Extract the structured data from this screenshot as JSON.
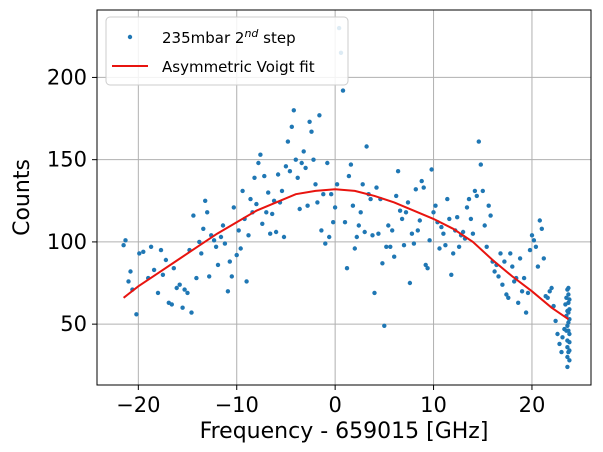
{
  "chart_data": {
    "type": "scatter",
    "title": "",
    "xlabel": "Frequency - 659015 [GHz]",
    "ylabel": "Counts",
    "xlim": [
      -24.2,
      26.0
    ],
    "ylim": [
      13,
      241
    ],
    "xticks": [
      -20,
      -10,
      0,
      10,
      20
    ],
    "xtick_labels": [
      "−20",
      "−10",
      "0",
      "10",
      "20"
    ],
    "yticks": [
      50,
      100,
      150,
      200
    ],
    "grid": true,
    "legend_position": "top-left",
    "colors": {
      "scatter": "#1f77b4",
      "fit": "#e8140f",
      "grid": "#b0b0b0"
    },
    "series": [
      {
        "name": "235mbar 2nd step",
        "name_prefix": "235mbar 2",
        "name_sup": "nd",
        "name_suffix": " step",
        "kind": "scatter",
        "points": [
          [
            -21.5,
            98
          ],
          [
            -21.3,
            101
          ],
          [
            -21.0,
            76
          ],
          [
            -20.8,
            82
          ],
          [
            -20.6,
            71
          ],
          [
            -20.2,
            56
          ],
          [
            -19.9,
            93
          ],
          [
            -19.5,
            94
          ],
          [
            -19.0,
            78
          ],
          [
            -18.7,
            97
          ],
          [
            -18.4,
            83
          ],
          [
            -18.0,
            69
          ],
          [
            -17.7,
            95
          ],
          [
            -17.5,
            80
          ],
          [
            -17.2,
            89
          ],
          [
            -16.9,
            63
          ],
          [
            -16.6,
            62
          ],
          [
            -16.4,
            84
          ],
          [
            -16.1,
            72
          ],
          [
            -15.8,
            74
          ],
          [
            -15.5,
            60
          ],
          [
            -15.3,
            71
          ],
          [
            -15.0,
            69
          ],
          [
            -14.8,
            95
          ],
          [
            -14.6,
            57
          ],
          [
            -14.4,
            116
          ],
          [
            -14.1,
            78
          ],
          [
            -13.8,
            100
          ],
          [
            -13.6,
            93
          ],
          [
            -13.4,
            108
          ],
          [
            -13.2,
            125
          ],
          [
            -13.0,
            118
          ],
          [
            -12.8,
            79
          ],
          [
            -12.6,
            104
          ],
          [
            -12.3,
            101
          ],
          [
            -12.1,
            97
          ],
          [
            -11.9,
            86
          ],
          [
            -11.6,
            103
          ],
          [
            -11.4,
            110
          ],
          [
            -11.2,
            99
          ],
          [
            -10.9,
            70
          ],
          [
            -10.7,
            88
          ],
          [
            -10.5,
            79
          ],
          [
            -10.3,
            121
          ],
          [
            -10.0,
            92
          ],
          [
            -9.8,
            107
          ],
          [
            -9.6,
            96
          ],
          [
            -9.4,
            131
          ],
          [
            -9.2,
            114
          ],
          [
            -9.0,
            76
          ],
          [
            -8.8,
            104
          ],
          [
            -8.6,
            126
          ],
          [
            -8.4,
            118
          ],
          [
            -8.2,
            139
          ],
          [
            -8.0,
            123
          ],
          [
            -7.8,
            148
          ],
          [
            -7.6,
            153
          ],
          [
            -7.4,
            111
          ],
          [
            -7.2,
            140
          ],
          [
            -7.0,
            118
          ],
          [
            -6.8,
            130
          ],
          [
            -6.6,
            105
          ],
          [
            -6.4,
            117
          ],
          [
            -6.2,
            125
          ],
          [
            -6.0,
            106
          ],
          [
            -5.8,
            141
          ],
          [
            -5.6,
            124
          ],
          [
            -5.4,
            131
          ],
          [
            -5.2,
            103
          ],
          [
            -5.0,
            146
          ],
          [
            -4.8,
            161
          ],
          [
            -4.6,
            143
          ],
          [
            -4.4,
            170
          ],
          [
            -4.2,
            180
          ],
          [
            -4.0,
            150
          ],
          [
            -3.8,
            139
          ],
          [
            -3.6,
            120
          ],
          [
            -3.4,
            148
          ],
          [
            -3.2,
            155
          ],
          [
            -3.0,
            145
          ],
          [
            -2.8,
            122
          ],
          [
            -2.6,
            173
          ],
          [
            -2.4,
            167
          ],
          [
            -2.2,
            150
          ],
          [
            -2.0,
            135
          ],
          [
            -1.8,
            124
          ],
          [
            -1.6,
            177
          ],
          [
            -1.4,
            107
          ],
          [
            -1.2,
            129
          ],
          [
            -1.0,
            99
          ],
          [
            -0.8,
            148
          ],
          [
            -0.6,
            103
          ],
          [
            -0.4,
            129
          ],
          [
            -0.2,
            112
          ],
          [
            0.0,
            121
          ],
          [
            0.2,
            135
          ],
          [
            0.4,
            230
          ],
          [
            0.6,
            215
          ],
          [
            0.8,
            192
          ],
          [
            1.0,
            112
          ],
          [
            1.2,
            84
          ],
          [
            1.4,
            140
          ],
          [
            1.6,
            147
          ],
          [
            1.8,
            122
          ],
          [
            2.0,
            96
          ],
          [
            2.2,
            103
          ],
          [
            2.4,
            110
          ],
          [
            2.6,
            118
          ],
          [
            2.8,
            135
          ],
          [
            3.0,
            106
          ],
          [
            3.2,
            158
          ],
          [
            3.4,
            129
          ],
          [
            3.6,
            126
          ],
          [
            3.8,
            104
          ],
          [
            4.0,
            69
          ],
          [
            4.2,
            133
          ],
          [
            4.4,
            105
          ],
          [
            4.6,
            126
          ],
          [
            4.8,
            87
          ],
          [
            5.0,
            49
          ],
          [
            5.2,
            97
          ],
          [
            5.4,
            110
          ],
          [
            5.6,
            97
          ],
          [
            5.8,
            107
          ],
          [
            6.0,
            91
          ],
          [
            6.2,
            128
          ],
          [
            6.4,
            143
          ],
          [
            6.6,
            119
          ],
          [
            6.8,
            114
          ],
          [
            7.0,
            98
          ],
          [
            7.2,
            118
          ],
          [
            7.4,
            124
          ],
          [
            7.6,
            75
          ],
          [
            7.8,
            105
          ],
          [
            8.0,
            99
          ],
          [
            8.2,
            132
          ],
          [
            8.4,
            107
          ],
          [
            8.6,
            113
          ],
          [
            8.8,
            137
          ],
          [
            9.0,
            133
          ],
          [
            9.2,
            86
          ],
          [
            9.4,
            84
          ],
          [
            9.6,
            101
          ],
          [
            9.8,
            144
          ],
          [
            10.0,
            118
          ],
          [
            10.2,
            122
          ],
          [
            10.4,
            112
          ],
          [
            10.6,
            96
          ],
          [
            10.8,
            109
          ],
          [
            11.0,
            105
          ],
          [
            11.2,
            98
          ],
          [
            11.4,
            126
          ],
          [
            11.6,
            114
          ],
          [
            11.8,
            80
          ],
          [
            12.0,
            93
          ],
          [
            12.2,
            107
          ],
          [
            12.4,
            115
          ],
          [
            12.6,
            97
          ],
          [
            12.8,
            104
          ],
          [
            13.0,
            106
          ],
          [
            13.2,
            102
          ],
          [
            13.4,
            121
          ],
          [
            13.6,
            126
          ],
          [
            13.8,
            114
          ],
          [
            14.0,
            105
          ],
          [
            14.2,
            131
          ],
          [
            14.4,
            128
          ],
          [
            14.6,
            161
          ],
          [
            14.8,
            147
          ],
          [
            15.0,
            131
          ],
          [
            15.2,
            110
          ],
          [
            15.4,
            97
          ],
          [
            15.6,
            122
          ],
          [
            15.8,
            116
          ],
          [
            16.0,
            88
          ],
          [
            16.2,
            82
          ],
          [
            16.4,
            86
          ],
          [
            16.6,
            79
          ],
          [
            16.8,
            93
          ],
          [
            17.0,
            74
          ],
          [
            17.2,
            88
          ],
          [
            17.4,
            68
          ],
          [
            17.6,
            66
          ],
          [
            17.8,
            93
          ],
          [
            18.0,
            85
          ],
          [
            18.2,
            76
          ],
          [
            18.4,
            78
          ],
          [
            18.6,
            63
          ],
          [
            18.8,
            90
          ],
          [
            19.0,
            70
          ],
          [
            19.2,
            78
          ],
          [
            19.4,
            57
          ],
          [
            19.6,
            69
          ],
          [
            19.8,
            95
          ],
          [
            20.0,
            104
          ],
          [
            20.2,
            101
          ],
          [
            20.4,
            97
          ],
          [
            20.6,
            85
          ],
          [
            20.8,
            113
          ],
          [
            21.0,
            108
          ],
          [
            21.2,
            90
          ],
          [
            21.4,
            67
          ],
          [
            21.6,
            66
          ],
          [
            21.8,
            70
          ],
          [
            22.0,
            72
          ],
          [
            22.2,
            61
          ],
          [
            22.4,
            52
          ],
          [
            22.6,
            44
          ],
          [
            22.8,
            38
          ],
          [
            23.0,
            33
          ],
          [
            23.1,
            42
          ],
          [
            23.3,
            47
          ],
          [
            23.4,
            62
          ],
          [
            23.5,
            55
          ],
          [
            23.5,
            66
          ],
          [
            23.5,
            46
          ],
          [
            23.6,
            49
          ],
          [
            23.6,
            30
          ],
          [
            23.6,
            36
          ],
          [
            23.6,
            24
          ],
          [
            23.6,
            40
          ],
          [
            23.7,
            51
          ],
          [
            23.7,
            63
          ],
          [
            23.7,
            57
          ],
          [
            23.7,
            72
          ],
          [
            23.7,
            68
          ],
          [
            23.8,
            59
          ],
          [
            23.8,
            44
          ],
          [
            23.8,
            34
          ],
          [
            23.8,
            39
          ],
          [
            23.8,
            28
          ],
          [
            23.8,
            53
          ],
          [
            23.6,
            71
          ],
          [
            23.7,
            46
          ],
          [
            23.8,
            65
          ],
          [
            23.6,
            58
          ],
          [
            23.7,
            33
          ]
        ]
      },
      {
        "name": "Asymmetric Voigt fit",
        "kind": "line",
        "points": [
          [
            -21.5,
            66
          ],
          [
            -20,
            73
          ],
          [
            -18,
            81
          ],
          [
            -16,
            89
          ],
          [
            -14,
            97
          ],
          [
            -12,
            105
          ],
          [
            -10,
            112
          ],
          [
            -8,
            119
          ],
          [
            -6,
            124
          ],
          [
            -4,
            129
          ],
          [
            -2,
            131
          ],
          [
            0,
            132
          ],
          [
            2,
            131
          ],
          [
            4,
            128
          ],
          [
            6,
            124
          ],
          [
            8,
            119
          ],
          [
            10,
            114
          ],
          [
            12,
            108
          ],
          [
            14,
            100
          ],
          [
            16,
            89
          ],
          [
            18,
            79
          ],
          [
            20,
            70
          ],
          [
            22,
            60
          ],
          [
            23.7,
            53
          ]
        ]
      }
    ]
  }
}
